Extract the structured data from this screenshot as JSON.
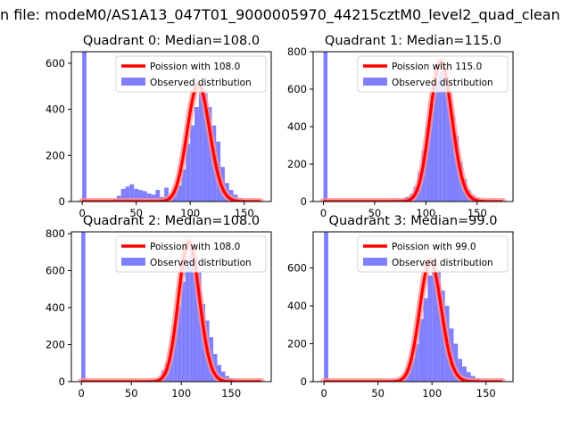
{
  "figure_title": "n file: modeM0/AS1A13_047T01_9000005970_44215cztM0_level2_quad_clean",
  "colors": {
    "bars": "#8080ff",
    "curve": "#ff0000",
    "halo": "#ff9090",
    "axes": "#000000"
  },
  "chart_data": [
    {
      "type": "bar",
      "title": "Quadrant 0: Median=108.0",
      "median": 108.0,
      "xlim": [
        -10,
        175
      ],
      "ylim": [
        0,
        650
      ],
      "xticks": [
        0,
        50,
        100,
        150
      ],
      "yticks": [
        0,
        200,
        400,
        600
      ],
      "grid": false,
      "legend_position": "upper-right",
      "legend": [
        "Poission with 108.0",
        "Observed distribution"
      ],
      "bin_width": 4,
      "histogram": [
        {
          "x": 0,
          "y": 650
        },
        {
          "x": 28,
          "y": 10
        },
        {
          "x": 32,
          "y": 25
        },
        {
          "x": 36,
          "y": 55
        },
        {
          "x": 40,
          "y": 65
        },
        {
          "x": 44,
          "y": 75
        },
        {
          "x": 48,
          "y": 55
        },
        {
          "x": 52,
          "y": 50
        },
        {
          "x": 56,
          "y": 45
        },
        {
          "x": 60,
          "y": 35
        },
        {
          "x": 64,
          "y": 30
        },
        {
          "x": 68,
          "y": 50
        },
        {
          "x": 72,
          "y": 20
        },
        {
          "x": 76,
          "y": 60
        },
        {
          "x": 80,
          "y": 25
        },
        {
          "x": 84,
          "y": 45
        },
        {
          "x": 88,
          "y": 70
        },
        {
          "x": 92,
          "y": 140
        },
        {
          "x": 96,
          "y": 250
        },
        {
          "x": 100,
          "y": 330
        },
        {
          "x": 104,
          "y": 410
        },
        {
          "x": 108,
          "y": 470
        },
        {
          "x": 112,
          "y": 470
        },
        {
          "x": 116,
          "y": 410
        },
        {
          "x": 120,
          "y": 330
        },
        {
          "x": 124,
          "y": 260
        },
        {
          "x": 128,
          "y": 150
        },
        {
          "x": 132,
          "y": 80
        },
        {
          "x": 136,
          "y": 50
        },
        {
          "x": 140,
          "y": 30
        },
        {
          "x": 144,
          "y": 15
        },
        {
          "x": 148,
          "y": 8
        }
      ]
    },
    {
      "type": "bar",
      "title": "Quadrant 1: Median=115.0",
      "median": 115.0,
      "xlim": [
        -10,
        185
      ],
      "ylim": [
        0,
        800
      ],
      "xticks": [
        0,
        50,
        100,
        150
      ],
      "yticks": [
        0,
        200,
        400,
        600,
        800
      ],
      "grid": false,
      "legend_position": "upper-right",
      "legend": [
        "Poission with 115.0",
        "Observed distribution"
      ],
      "bin_width": 4,
      "histogram": [
        {
          "x": 0,
          "y": 800
        },
        {
          "x": 60,
          "y": 5
        },
        {
          "x": 64,
          "y": 8
        },
        {
          "x": 68,
          "y": 12
        },
        {
          "x": 72,
          "y": 10
        },
        {
          "x": 76,
          "y": 15
        },
        {
          "x": 80,
          "y": 25
        },
        {
          "x": 84,
          "y": 40
        },
        {
          "x": 88,
          "y": 80
        },
        {
          "x": 92,
          "y": 160
        },
        {
          "x": 96,
          "y": 270
        },
        {
          "x": 100,
          "y": 400
        },
        {
          "x": 104,
          "y": 520
        },
        {
          "x": 108,
          "y": 640
        },
        {
          "x": 112,
          "y": 690
        },
        {
          "x": 116,
          "y": 690
        },
        {
          "x": 120,
          "y": 610
        },
        {
          "x": 124,
          "y": 460
        },
        {
          "x": 128,
          "y": 350
        },
        {
          "x": 132,
          "y": 210
        },
        {
          "x": 136,
          "y": 120
        },
        {
          "x": 140,
          "y": 60
        },
        {
          "x": 144,
          "y": 35
        },
        {
          "x": 148,
          "y": 20
        },
        {
          "x": 152,
          "y": 12
        },
        {
          "x": 156,
          "y": 8
        },
        {
          "x": 160,
          "y": 5
        }
      ]
    },
    {
      "type": "bar",
      "title": "Quadrant 2: Median=108.0",
      "median": 108.0,
      "xlim": [
        -10,
        190
      ],
      "ylim": [
        0,
        810
      ],
      "xticks": [
        0,
        50,
        100,
        150
      ],
      "yticks": [
        0,
        200,
        400,
        600,
        800
      ],
      "grid": false,
      "legend_position": "upper-right",
      "legend": [
        "Poission with 108.0",
        "Observed distribution"
      ],
      "bin_width": 4,
      "histogram": [
        {
          "x": 0,
          "y": 810
        },
        {
          "x": 50,
          "y": 4
        },
        {
          "x": 58,
          "y": 6
        },
        {
          "x": 64,
          "y": 8
        },
        {
          "x": 68,
          "y": 10
        },
        {
          "x": 72,
          "y": 12
        },
        {
          "x": 76,
          "y": 20
        },
        {
          "x": 80,
          "y": 60
        },
        {
          "x": 84,
          "y": 100
        },
        {
          "x": 88,
          "y": 180
        },
        {
          "x": 92,
          "y": 300
        },
        {
          "x": 96,
          "y": 410
        },
        {
          "x": 100,
          "y": 540
        },
        {
          "x": 104,
          "y": 640
        },
        {
          "x": 108,
          "y": 700
        },
        {
          "x": 112,
          "y": 670
        },
        {
          "x": 116,
          "y": 590
        },
        {
          "x": 120,
          "y": 420
        },
        {
          "x": 124,
          "y": 330
        },
        {
          "x": 128,
          "y": 240
        },
        {
          "x": 132,
          "y": 150
        },
        {
          "x": 136,
          "y": 90
        },
        {
          "x": 140,
          "y": 55
        },
        {
          "x": 144,
          "y": 30
        },
        {
          "x": 148,
          "y": 18
        },
        {
          "x": 152,
          "y": 10
        },
        {
          "x": 156,
          "y": 6
        }
      ]
    },
    {
      "type": "bar",
      "title": "Quadrant 3: Median=99.0",
      "median": 99.0,
      "xlim": [
        -10,
        175
      ],
      "ylim": [
        0,
        790
      ],
      "xticks": [
        0,
        50,
        100,
        150
      ],
      "yticks": [
        0,
        200,
        400,
        600
      ],
      "grid": false,
      "legend_position": "upper-right",
      "legend": [
        "Poission with 99.0",
        "Observed distribution"
      ],
      "bin_width": 4,
      "histogram": [
        {
          "x": 0,
          "y": 790
        },
        {
          "x": 40,
          "y": 5
        },
        {
          "x": 48,
          "y": 6
        },
        {
          "x": 56,
          "y": 8
        },
        {
          "x": 64,
          "y": 10
        },
        {
          "x": 68,
          "y": 15
        },
        {
          "x": 72,
          "y": 25
        },
        {
          "x": 76,
          "y": 70
        },
        {
          "x": 80,
          "y": 120
        },
        {
          "x": 84,
          "y": 200
        },
        {
          "x": 88,
          "y": 330
        },
        {
          "x": 92,
          "y": 440
        },
        {
          "x": 96,
          "y": 560
        },
        {
          "x": 100,
          "y": 580
        },
        {
          "x": 104,
          "y": 590
        },
        {
          "x": 108,
          "y": 480
        },
        {
          "x": 112,
          "y": 400
        },
        {
          "x": 116,
          "y": 280
        },
        {
          "x": 120,
          "y": 200
        },
        {
          "x": 124,
          "y": 120
        },
        {
          "x": 128,
          "y": 80
        },
        {
          "x": 132,
          "y": 50
        },
        {
          "x": 136,
          "y": 30
        },
        {
          "x": 140,
          "y": 18
        },
        {
          "x": 144,
          "y": 10
        },
        {
          "x": 148,
          "y": 6
        }
      ]
    }
  ]
}
